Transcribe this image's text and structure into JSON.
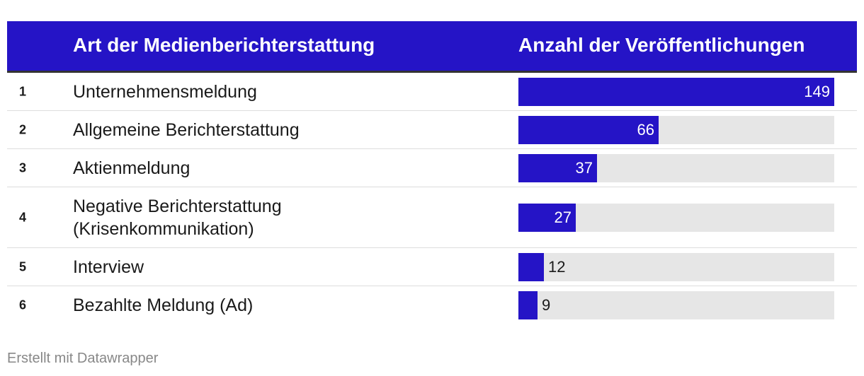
{
  "chart_data": {
    "type": "bar",
    "columns": [
      "Art der Medienberichterstattung",
      "Anzahl der Veröffentlichungen"
    ],
    "ranks": [
      "1",
      "2",
      "3",
      "4",
      "5",
      "6"
    ],
    "categories": [
      "Unternehmensmeldung",
      "Allgemeine Berichterstattung",
      "Aktienmeldung",
      "Negative Berichterstattung (Krisenkommunikation)",
      "Interview",
      "Bezahlte Meldung (Ad)"
    ],
    "values": [
      149,
      66,
      37,
      27,
      12,
      9
    ],
    "xlim": [
      0,
      149
    ]
  },
  "colors": {
    "accent": "#2514c6",
    "track": "#e6e6e6",
    "header_text": "#ffffff"
  },
  "footer": {
    "credit": "Erstellt mit Datawrapper"
  }
}
